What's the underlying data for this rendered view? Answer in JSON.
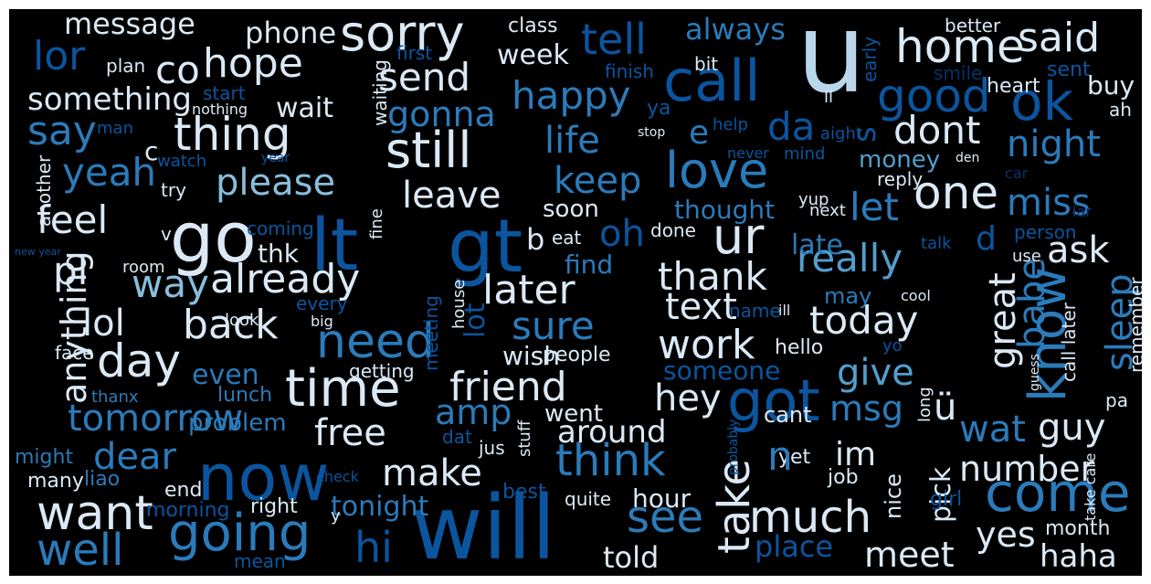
{
  "palette": {
    "c1": "#dbe9f6",
    "c2": "#bad6eb",
    "c3": "#89bedc",
    "c4": "#539ecd",
    "c5": "#2b7bba",
    "c6": "#0b559f",
    "c7": "#08306b"
  },
  "words": [
    {
      "text": "u",
      "color": "c2"
    },
    {
      "text": "will",
      "color": "c6"
    },
    {
      "text": "gt",
      "color": "c6"
    },
    {
      "text": "lt",
      "color": "c6"
    },
    {
      "text": "go",
      "color": "c1"
    },
    {
      "text": "now",
      "color": "c6"
    },
    {
      "text": "got",
      "color": "c6"
    },
    {
      "text": "call",
      "color": "c6"
    },
    {
      "text": "ok",
      "color": "c6"
    },
    {
      "text": "know",
      "color": "c5"
    },
    {
      "text": "come",
      "color": "c5"
    },
    {
      "text": "going",
      "color": "c5"
    },
    {
      "text": "time",
      "color": "c1"
    },
    {
      "text": "sorry",
      "color": "c1"
    },
    {
      "text": "love",
      "color": "c5"
    },
    {
      "text": "ur",
      "color": "c1"
    },
    {
      "text": "still",
      "color": "c1"
    },
    {
      "text": "want",
      "color": "c1"
    },
    {
      "text": "need",
      "color": "c5"
    },
    {
      "text": "home",
      "color": "c1"
    },
    {
      "text": "good",
      "color": "c6"
    },
    {
      "text": "day",
      "color": "c1"
    },
    {
      "text": "one",
      "color": "c1"
    },
    {
      "text": "thing",
      "color": "c1"
    },
    {
      "text": "see",
      "color": "c5"
    },
    {
      "text": "think",
      "color": "c5"
    },
    {
      "text": "take",
      "color": "c1"
    },
    {
      "text": "much",
      "color": "c1"
    },
    {
      "text": "well",
      "color": "c5"
    },
    {
      "text": "hi",
      "color": "c6"
    },
    {
      "text": "tell",
      "color": "c6"
    },
    {
      "text": "said",
      "color": "c1"
    },
    {
      "text": "lor",
      "color": "c6"
    },
    {
      "text": "hope",
      "color": "c1"
    },
    {
      "text": "co",
      "color": "c1"
    },
    {
      "text": "send",
      "color": "c1"
    },
    {
      "text": "happy",
      "color": "c5"
    },
    {
      "text": "da",
      "color": "c6"
    },
    {
      "text": "dont",
      "color": "c1"
    },
    {
      "text": "night",
      "color": "c5"
    },
    {
      "text": "yeah",
      "color": "c5"
    },
    {
      "text": "please",
      "color": "c3"
    },
    {
      "text": "keep",
      "color": "c5"
    },
    {
      "text": "leave",
      "color": "c1"
    },
    {
      "text": "life",
      "color": "c5"
    },
    {
      "text": "feel",
      "color": "c1"
    },
    {
      "text": "let",
      "color": "c5"
    },
    {
      "text": "miss",
      "color": "c5"
    },
    {
      "text": "really",
      "color": "c4"
    },
    {
      "text": "ask",
      "color": "c1"
    },
    {
      "text": "oh",
      "color": "c6"
    },
    {
      "text": "way",
      "color": "c3"
    },
    {
      "text": "already",
      "color": "c1"
    },
    {
      "text": "later",
      "color": "c1"
    },
    {
      "text": "thank",
      "color": "c1"
    },
    {
      "text": "text",
      "color": "c1"
    },
    {
      "text": "today",
      "color": "c1"
    },
    {
      "text": "sleep",
      "color": "c5"
    },
    {
      "text": "babe",
      "color": "c5"
    },
    {
      "text": "back",
      "color": "c1"
    },
    {
      "text": "lol",
      "color": "c1"
    },
    {
      "text": "pl",
      "color": "c1"
    },
    {
      "text": "sure",
      "color": "c5"
    },
    {
      "text": "work",
      "color": "c1"
    },
    {
      "text": "great",
      "color": "c1"
    },
    {
      "text": "give",
      "color": "c4"
    },
    {
      "text": "friend",
      "color": "c1"
    },
    {
      "text": "hey",
      "color": "c1"
    },
    {
      "text": "msg",
      "color": "c5"
    },
    {
      "text": "wat",
      "color": "c5"
    },
    {
      "text": "guy",
      "color": "c1"
    },
    {
      "text": "tomorrow",
      "color": "c5"
    },
    {
      "text": "dear",
      "color": "c5"
    },
    {
      "text": "free",
      "color": "c1"
    },
    {
      "text": "make",
      "color": "c1"
    },
    {
      "text": "amp",
      "color": "c5"
    },
    {
      "text": "im",
      "color": "c1"
    },
    {
      "text": "number",
      "color": "c1"
    },
    {
      "text": "anything",
      "color": "c1"
    },
    {
      "text": "around",
      "color": "c1"
    },
    {
      "text": "yes",
      "color": "c1"
    },
    {
      "text": "meet",
      "color": "c1"
    },
    {
      "text": "haha",
      "color": "c1"
    },
    {
      "text": "told",
      "color": "c1"
    },
    {
      "text": "tonight",
      "color": "c5"
    },
    {
      "text": "message",
      "color": "c1"
    },
    {
      "text": "phone",
      "color": "c1"
    },
    {
      "text": "always",
      "color": "c5"
    },
    {
      "text": "class",
      "color": "c1"
    },
    {
      "text": "better",
      "color": "c1"
    },
    {
      "text": "something",
      "color": "c1"
    },
    {
      "text": "week",
      "color": "c1"
    },
    {
      "text": "plan",
      "color": "c1"
    },
    {
      "text": "first",
      "color": "c6"
    },
    {
      "text": "finish",
      "color": "c6"
    },
    {
      "text": "bit",
      "color": "c1"
    },
    {
      "text": "smile",
      "color": "c7"
    },
    {
      "text": "sent",
      "color": "c6"
    },
    {
      "text": "heart",
      "color": "c1"
    },
    {
      "text": "buy",
      "color": "c1"
    },
    {
      "text": "early",
      "color": "c6"
    },
    {
      "text": "start",
      "color": "c6"
    },
    {
      "text": "nothing",
      "color": "c1"
    },
    {
      "text": "wait",
      "color": "c1"
    },
    {
      "text": "gonna",
      "color": "c5"
    },
    {
      "text": "say",
      "color": "c5"
    },
    {
      "text": "man",
      "color": "c6"
    },
    {
      "text": "waiting",
      "color": "c1"
    },
    {
      "text": "ya",
      "color": "c6"
    },
    {
      "text": "help",
      "color": "c6"
    },
    {
      "text": "stop",
      "color": "c1"
    },
    {
      "text": "ll",
      "color": "c1"
    },
    {
      "text": "ah",
      "color": "c1"
    },
    {
      "text": "e",
      "color": "c5"
    },
    {
      "text": "c",
      "color": "c1"
    },
    {
      "text": "s",
      "color": "c6"
    },
    {
      "text": "watch",
      "color": "c6"
    },
    {
      "text": "year",
      "color": "c6"
    },
    {
      "text": "never",
      "color": "c6"
    },
    {
      "text": "mind",
      "color": "c6"
    },
    {
      "text": "aight",
      "color": "c6"
    },
    {
      "text": "den",
      "color": "c1"
    },
    {
      "text": "money",
      "color": "c4"
    },
    {
      "text": "reply",
      "color": "c1"
    },
    {
      "text": "car",
      "color": "c7"
    },
    {
      "text": "another",
      "color": "c1"
    },
    {
      "text": "try",
      "color": "c1"
    },
    {
      "text": "fine",
      "color": "c1"
    },
    {
      "text": "soon",
      "color": "c1"
    },
    {
      "text": "thought",
      "color": "c5"
    },
    {
      "text": "yup",
      "color": "c1"
    },
    {
      "text": "next",
      "color": "c1"
    },
    {
      "text": "lar",
      "color": "c7"
    },
    {
      "text": "coming",
      "color": "c6"
    },
    {
      "text": "b",
      "color": "c1"
    },
    {
      "text": "eat",
      "color": "c1"
    },
    {
      "text": "done",
      "color": "c1"
    },
    {
      "text": "talk",
      "color": "c6"
    },
    {
      "text": "d",
      "color": "c6"
    },
    {
      "text": "use",
      "color": "c1"
    },
    {
      "text": "person",
      "color": "c6"
    },
    {
      "text": "new year",
      "color": "c6"
    },
    {
      "text": "v",
      "color": "c1"
    },
    {
      "text": "thk",
      "color": "c1"
    },
    {
      "text": "room",
      "color": "c1"
    },
    {
      "text": "find",
      "color": "c5"
    },
    {
      "text": "late",
      "color": "c5"
    },
    {
      "text": "house",
      "color": "c1"
    },
    {
      "text": "lot",
      "color": "c6"
    },
    {
      "text": "meeting",
      "color": "c6"
    },
    {
      "text": "every",
      "color": "c6"
    },
    {
      "text": "look",
      "color": "c1"
    },
    {
      "text": "big",
      "color": "c1"
    },
    {
      "text": "may",
      "color": "c5"
    },
    {
      "text": "cool",
      "color": "c1"
    },
    {
      "text": "remember",
      "color": "c1"
    },
    {
      "text": "name",
      "color": "c6"
    },
    {
      "text": "ill",
      "color": "c1"
    },
    {
      "text": "call later",
      "color": "c1"
    },
    {
      "text": "face",
      "color": "c1"
    },
    {
      "text": "even",
      "color": "c5"
    },
    {
      "text": "getting",
      "color": "c1"
    },
    {
      "text": "wish",
      "color": "c1"
    },
    {
      "text": "people",
      "color": "c1"
    },
    {
      "text": "someone",
      "color": "c6"
    },
    {
      "text": "hello",
      "color": "c1"
    },
    {
      "text": "yo",
      "color": "c6"
    },
    {
      "text": "lunch",
      "color": "c5"
    },
    {
      "text": "thanx",
      "color": "c5"
    },
    {
      "text": "cant",
      "color": "c1"
    },
    {
      "text": "long",
      "color": "c1"
    },
    {
      "text": "ü",
      "color": "c1"
    },
    {
      "text": "guess",
      "color": "c1"
    },
    {
      "text": "pa",
      "color": "c1"
    },
    {
      "text": "problem",
      "color": "c5"
    },
    {
      "text": "went",
      "color": "c1"
    },
    {
      "text": "might",
      "color": "c5"
    },
    {
      "text": "many",
      "color": "c1"
    },
    {
      "text": "liao",
      "color": "c5"
    },
    {
      "text": "dat",
      "color": "c6"
    },
    {
      "text": "jus",
      "color": "c1"
    },
    {
      "text": "stuff",
      "color": "c1"
    },
    {
      "text": "check",
      "color": "c6"
    },
    {
      "text": "probably",
      "color": "c6"
    },
    {
      "text": "end",
      "color": "c1"
    },
    {
      "text": "best",
      "color": "c6"
    },
    {
      "text": "yet",
      "color": "c1"
    },
    {
      "text": "job",
      "color": "c1"
    },
    {
      "text": "nice",
      "color": "c1"
    },
    {
      "text": "pick",
      "color": "c1"
    },
    {
      "text": "girl",
      "color": "c6"
    },
    {
      "text": "take care",
      "color": "c1"
    },
    {
      "text": "morning",
      "color": "c6"
    },
    {
      "text": "right",
      "color": "c1"
    },
    {
      "text": "y",
      "color": "c1"
    },
    {
      "text": "quite",
      "color": "c1"
    },
    {
      "text": "hour",
      "color": "c1"
    },
    {
      "text": "n",
      "color": "c5"
    },
    {
      "text": "month",
      "color": "c1"
    },
    {
      "text": "mean",
      "color": "c6"
    },
    {
      "text": "place",
      "color": "c6"
    }
  ]
}
